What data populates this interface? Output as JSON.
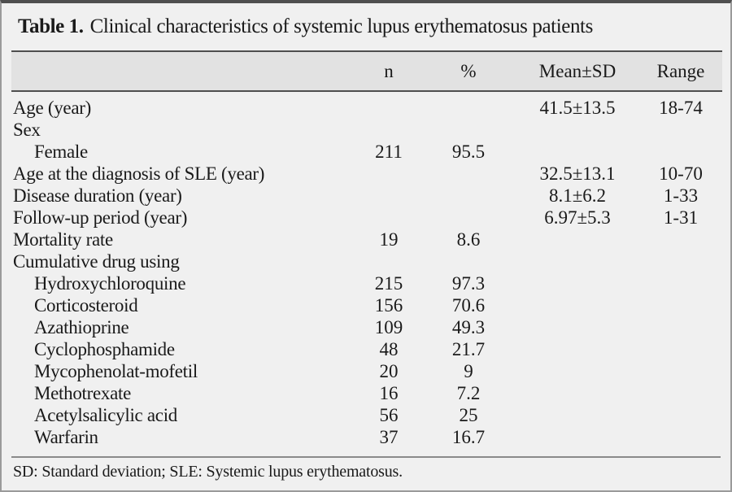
{
  "title": {
    "label": "Table 1.",
    "text": "Clinical characteristics of systemic lupus erythematosus patients"
  },
  "header": {
    "label": "",
    "n": "n",
    "percent": "%",
    "mean_sd": "Mean±SD",
    "range": "Range"
  },
  "rows": [
    {
      "label": "Age (year)",
      "indent": false,
      "n": "",
      "percent": "",
      "mean_sd": "41.5±13.5",
      "range": "18-74"
    },
    {
      "label": "Sex",
      "indent": false,
      "n": "",
      "percent": "",
      "mean_sd": "",
      "range": ""
    },
    {
      "label": "Female",
      "indent": true,
      "n": "211",
      "percent": "95.5",
      "mean_sd": "",
      "range": ""
    },
    {
      "label": "Age at the diagnosis of SLE (year)",
      "indent": false,
      "n": "",
      "percent": "",
      "mean_sd": "32.5±13.1",
      "range": "10-70"
    },
    {
      "label": "Disease duration (year)",
      "indent": false,
      "n": "",
      "percent": "",
      "mean_sd": "8.1±6.2",
      "range": "1-33"
    },
    {
      "label": "Follow-up period (year)",
      "indent": false,
      "n": "",
      "percent": "",
      "mean_sd": "6.97±5.3",
      "range": "1-31"
    },
    {
      "label": "Mortality rate",
      "indent": false,
      "n": "19",
      "percent": "8.6",
      "mean_sd": "",
      "range": ""
    },
    {
      "label": "Cumulative drug using",
      "indent": false,
      "n": "",
      "percent": "",
      "mean_sd": "",
      "range": ""
    },
    {
      "label": "Hydroxychloroquine",
      "indent": true,
      "n": "215",
      "percent": "97.3",
      "mean_sd": "",
      "range": ""
    },
    {
      "label": "Corticosteroid",
      "indent": true,
      "n": "156",
      "percent": "70.6",
      "mean_sd": "",
      "range": ""
    },
    {
      "label": "Azathioprine",
      "indent": true,
      "n": "109",
      "percent": "49.3",
      "mean_sd": "",
      "range": ""
    },
    {
      "label": "Cyclophosphamide",
      "indent": true,
      "n": "48",
      "percent": "21.7",
      "mean_sd": "",
      "range": ""
    },
    {
      "label": "Mycophenolat-mofetil",
      "indent": true,
      "n": "20",
      "percent": "9",
      "mean_sd": "",
      "range": ""
    },
    {
      "label": "Methotrexate",
      "indent": true,
      "n": "16",
      "percent": "7.2",
      "mean_sd": "",
      "range": ""
    },
    {
      "label": "Acetylsalicylic acid",
      "indent": true,
      "n": "56",
      "percent": "25",
      "mean_sd": "",
      "range": ""
    },
    {
      "label": "Warfarin",
      "indent": true,
      "n": "37",
      "percent": "16.7",
      "mean_sd": "",
      "range": ""
    }
  ],
  "footnote": "SD: Standard deviation; SLE: Systemic lupus erythematosus.",
  "colors": {
    "background": "#f0f0f0",
    "header_band": "#e2e2e2",
    "rule_dark": "#4f4f4f",
    "rule_light": "#8a8a8a",
    "frame": "#9a9a9a",
    "text": "#1a1a1a"
  }
}
